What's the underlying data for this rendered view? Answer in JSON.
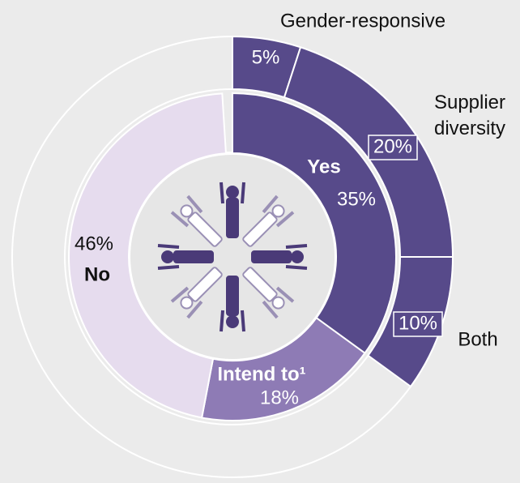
{
  "chart_data": {
    "type": "donut",
    "inner": {
      "categories": [
        "Yes",
        "Intend to¹",
        "No"
      ],
      "values": [
        35,
        18,
        46
      ],
      "value_labels": [
        "35%",
        "18%",
        "46%"
      ],
      "colors": [
        "#574a8a",
        "#8e7bb5",
        "#e6dcee"
      ]
    },
    "outer": {
      "categories": [
        "Gender-responsive",
        "Supplier diversity",
        "Both"
      ],
      "values": [
        5,
        20,
        10
      ],
      "value_labels": [
        "5%",
        "20%",
        "10%"
      ],
      "color": "#574a8a"
    }
  }
}
